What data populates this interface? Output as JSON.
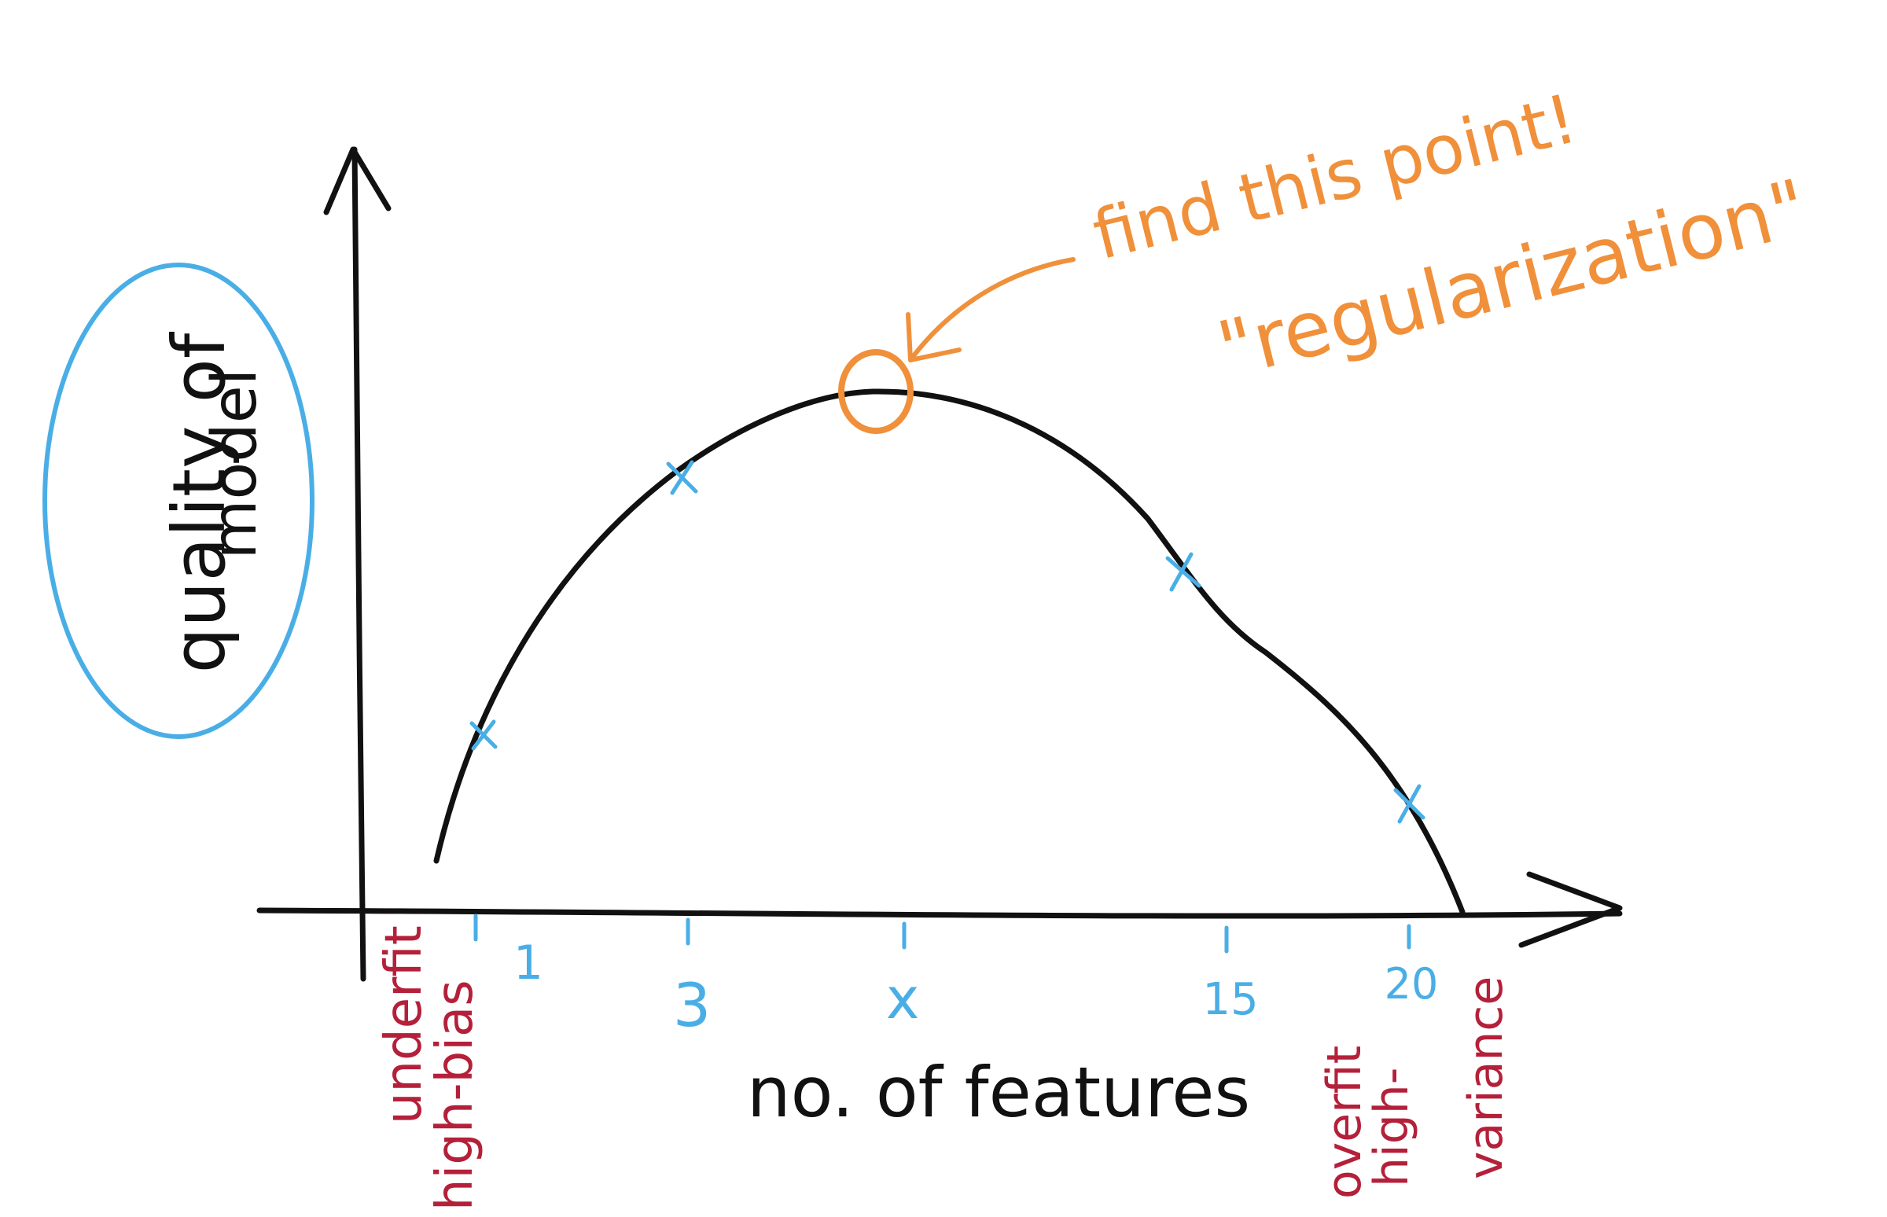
{
  "colors": {
    "ink": "#111111",
    "blue": "#4aaee6",
    "orange": "#f0903a",
    "red": "#b4203a"
  },
  "y_axis_label_line1": "quality of",
  "y_axis_label_line2": "model",
  "x_axis_label": "no. of features",
  "annotation": {
    "line1": "find this point!",
    "line2": "\"regularization\""
  },
  "left_note": {
    "line1": "underfit",
    "line2": "high-bias"
  },
  "right_note": {
    "line1": "overfit",
    "line2": "high-",
    "line3": "variance"
  },
  "chart_data": {
    "type": "line",
    "title": "",
    "xlabel": "no. of features",
    "ylabel": "quality of model",
    "tick_labels": [
      "1",
      "3",
      "x",
      "15",
      "20"
    ],
    "sampled_points": [
      {
        "x": "1",
        "marker": "x"
      },
      {
        "x": "3",
        "marker": "x"
      },
      {
        "x": "15",
        "marker": "x"
      },
      {
        "x": "20",
        "marker": "x"
      }
    ],
    "optimum": {
      "x": "x",
      "marker": "circle"
    },
    "shape": "inverted-u"
  }
}
